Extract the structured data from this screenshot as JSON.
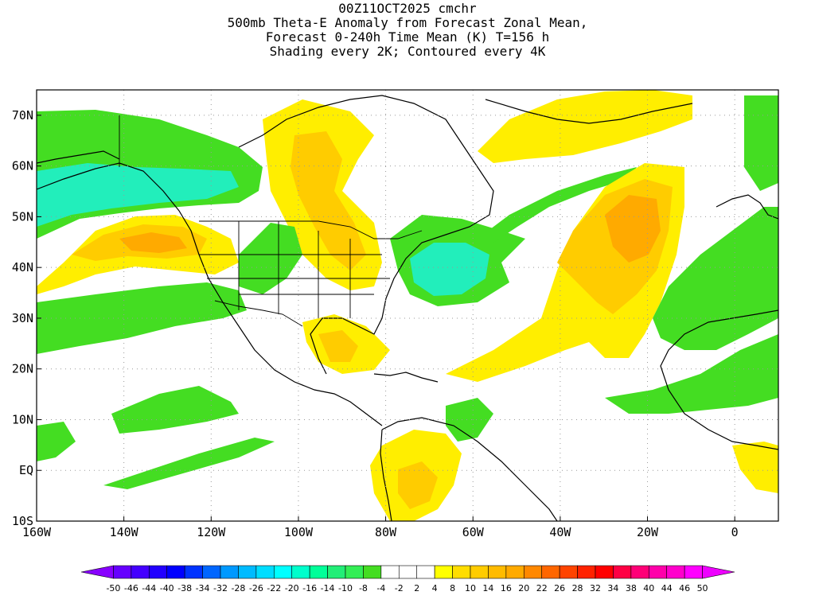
{
  "header": {
    "line1": "00Z11OCT2025 cmchr",
    "line2": "500mb Theta-E Anomaly from Forecast Zonal Mean,",
    "line3": "Forecast 0-240h Time Mean (K) T=156 h",
    "line4": "Shading every 2K; Contoured every 4K"
  },
  "map": {
    "lon_range": [
      -160,
      10
    ],
    "lat_range": [
      -10,
      75
    ],
    "lat_labels": [
      {
        "lat": 70,
        "text": "70N"
      },
      {
        "lat": 60,
        "text": "60N"
      },
      {
        "lat": 50,
        "text": "50N"
      },
      {
        "lat": 40,
        "text": "40N"
      },
      {
        "lat": 30,
        "text": "30N"
      },
      {
        "lat": 20,
        "text": "20N"
      },
      {
        "lat": 10,
        "text": "10N"
      },
      {
        "lat": 0,
        "text": "EQ"
      },
      {
        "lat": -10,
        "text": "10S"
      }
    ],
    "lon_labels": [
      {
        "lon": -160,
        "text": "160W"
      },
      {
        "lon": -140,
        "text": "140W"
      },
      {
        "lon": -120,
        "text": "120W"
      },
      {
        "lon": -100,
        "text": "100W"
      },
      {
        "lon": -80,
        "text": "80W"
      },
      {
        "lon": -60,
        "text": "60W"
      },
      {
        "lon": -40,
        "text": "40W"
      },
      {
        "lon": -20,
        "text": "20W"
      },
      {
        "lon": 0,
        "text": "0"
      }
    ],
    "colors": {
      "green": "#44dd22",
      "teal": "#22eebb",
      "yellow": "#ffee00",
      "gold": "#ffcc00",
      "orange": "#ffaa00"
    }
  },
  "colorbar": {
    "colors": [
      "#8800ff",
      "#6600ff",
      "#4400ff",
      "#2200ff",
      "#0000ff",
      "#0033ff",
      "#0066ff",
      "#0099ff",
      "#00bbff",
      "#00ddff",
      "#00ffff",
      "#00ffcc",
      "#00ff99",
      "#22ee77",
      "#33ee55",
      "#44dd22",
      "#ffffff",
      "#ffffff",
      "#ffffff",
      "#ffff00",
      "#ffdd00",
      "#ffcc00",
      "#ffbb00",
      "#ffaa00",
      "#ff8800",
      "#ff6600",
      "#ff4400",
      "#ff2200",
      "#ff0000",
      "#ff0044",
      "#ff0077",
      "#ff00aa",
      "#ff00cc",
      "#ff00ff",
      "#ee00ff"
    ],
    "labels": [
      "-50",
      "-46",
      "-44",
      "-40",
      "-38",
      "-34",
      "-32",
      "-28",
      "-26",
      "-22",
      "-20",
      "-16",
      "-14",
      "-10",
      "-8",
      "-4",
      "-2",
      "2",
      "4",
      "8",
      "10",
      "14",
      "16",
      "20",
      "22",
      "26",
      "28",
      "32",
      "34",
      "38",
      "40",
      "44",
      "46",
      "50"
    ]
  }
}
